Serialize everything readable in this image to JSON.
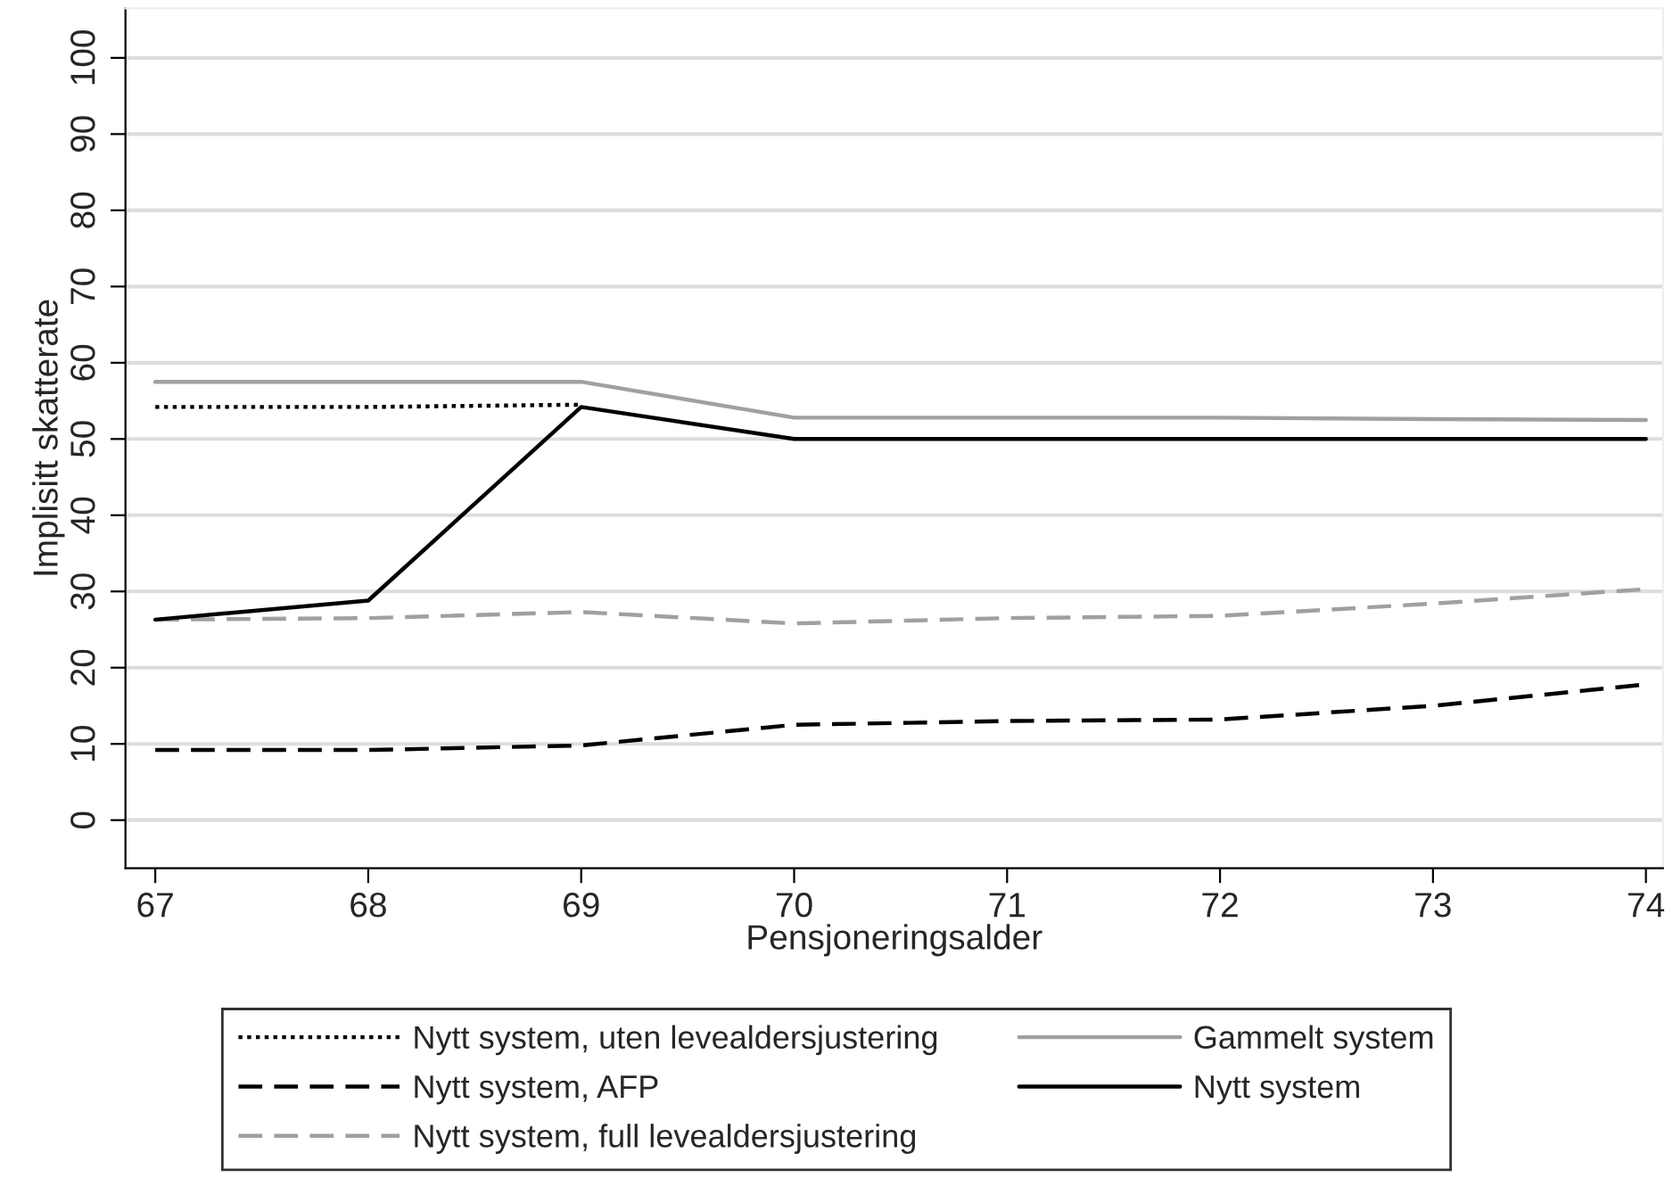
{
  "chart_data": {
    "type": "line",
    "xlabel": "Pensjoneringsalder",
    "ylabel": "Implisitt skatterate",
    "x": [
      67,
      68,
      69,
      70,
      71,
      72,
      73,
      74
    ],
    "xlim": [
      66.86,
      74.08
    ],
    "xticks": [
      67,
      68,
      69,
      70,
      71,
      72,
      73,
      74
    ],
    "ylim": [
      -6.3,
      106.5
    ],
    "yticks": [
      0,
      10,
      20,
      30,
      40,
      50,
      60,
      70,
      80,
      90,
      100
    ],
    "grid": "y",
    "legend": "bottom",
    "marker": "none",
    "series": [
      {
        "name": "Nytt system, uten levealdersjustering",
        "color": "#000000",
        "line_style": "dotted",
        "x": [
          67,
          68,
          69
        ],
        "values": [
          54.2,
          54.2,
          54.5
        ]
      },
      {
        "name": "Nytt system, AFP",
        "color": "#000000",
        "line_style": "dashed",
        "values": [
          9.2,
          9.2,
          9.8,
          12.5,
          13.0,
          13.2,
          15.0,
          17.8
        ]
      },
      {
        "name": "Nytt system, full levealdersjustering",
        "color": "#a0a0a0",
        "line_style": "dashed",
        "values": [
          26.3,
          26.5,
          27.3,
          25.8,
          26.5,
          26.8,
          28.4,
          30.3
        ]
      },
      {
        "name": "Gammelt system",
        "color": "#a0a0a0",
        "line_style": "solid",
        "values": [
          57.5,
          57.5,
          57.5,
          52.8,
          52.8,
          52.8,
          52.6,
          52.5
        ]
      },
      {
        "name": "Nytt system",
        "color": "#000000",
        "line_style": "solid",
        "values": [
          26.3,
          28.8,
          54.2,
          50,
          50,
          50,
          50,
          50
        ]
      }
    ]
  }
}
